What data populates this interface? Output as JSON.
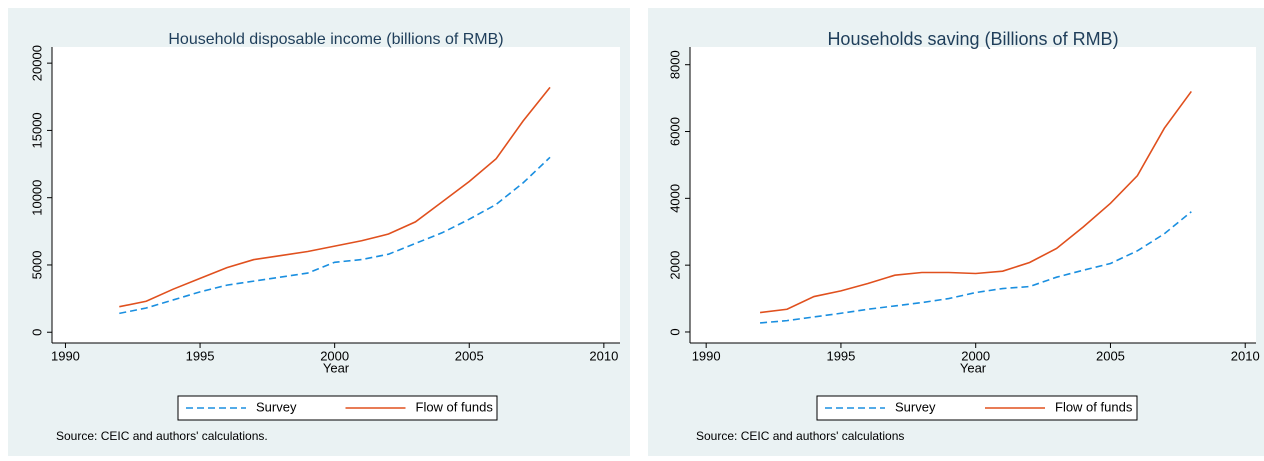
{
  "chart_data": [
    {
      "type": "line",
      "title": "Household disposable income (billions of RMB)",
      "x_label": "Year",
      "source": "Source: CEIC and authors' calculations.",
      "x": [
        1992,
        1993,
        1994,
        1995,
        1996,
        1997,
        1998,
        1999,
        2000,
        2001,
        2002,
        2003,
        2004,
        2005,
        2006,
        2007,
        2008
      ],
      "series": [
        {
          "name": "Survey",
          "color": "#1a8fe0",
          "dashed": true,
          "values": [
            1400,
            1800,
            2400,
            3000,
            3500,
            3800,
            4100,
            4400,
            5200,
            5400,
            5800,
            6600,
            7400,
            8400,
            9500,
            11100,
            13000
          ]
        },
        {
          "name": "Flow of funds",
          "color": "#e0501e",
          "dashed": false,
          "values": [
            1900,
            2300,
            3200,
            4000,
            4800,
            5400,
            5700,
            6000,
            6400,
            6800,
            7300,
            8200,
            9700,
            11200,
            12900,
            15700,
            18200
          ]
        }
      ],
      "xlim": [
        1989.5,
        2010.6
      ],
      "xticks": [
        1990,
        1995,
        2000,
        2005,
        2010
      ],
      "ylim": [
        -800,
        21200
      ],
      "yticks": [
        0,
        5000,
        10000,
        15000,
        20000
      ],
      "grid": false,
      "legend": "bottom"
    },
    {
      "type": "line",
      "title": "Households saving (Billions of RMB)",
      "x_label": "Year",
      "source": "Source: CEIC and authors' calculations",
      "x": [
        1992,
        1993,
        1994,
        1995,
        1996,
        1997,
        1998,
        1999,
        2000,
        2001,
        2002,
        2003,
        2004,
        2005,
        2006,
        2007,
        2008
      ],
      "series": [
        {
          "name": "Survey",
          "color": "#1a8fe0",
          "dashed": true,
          "values": [
            270,
            340,
            450,
            560,
            680,
            780,
            880,
            1000,
            1180,
            1300,
            1360,
            1640,
            1850,
            2050,
            2430,
            2940,
            3600
          ]
        },
        {
          "name": "Flow of funds",
          "color": "#e0501e",
          "dashed": false,
          "values": [
            580,
            680,
            1060,
            1230,
            1450,
            1700,
            1780,
            1780,
            1750,
            1820,
            2080,
            2500,
            3150,
            3850,
            4680,
            6100,
            7200
          ]
        }
      ],
      "xlim": [
        1989.4,
        2010.4
      ],
      "xticks": [
        1990,
        1995,
        2000,
        2005,
        2010
      ],
      "ylim": [
        -330,
        8530
      ],
      "yticks": [
        0,
        2000,
        4000,
        6000,
        8000
      ],
      "grid": false,
      "legend": "bottom"
    }
  ]
}
